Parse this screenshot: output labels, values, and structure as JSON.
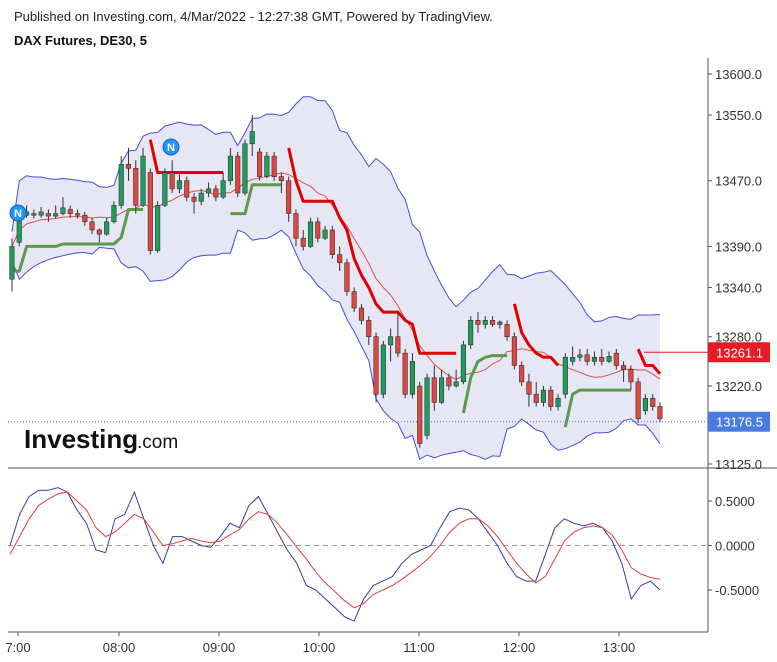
{
  "header": {
    "published": "Published on Investing.com, 4/Mar/2022 - 12:27:38 GMT, Powered by TradingView.",
    "symbol": "DAX Futures, DE30, 5"
  },
  "logo": {
    "brand": "Investing",
    "suffix": ".com"
  },
  "markers": [
    {
      "label": "N"
    },
    {
      "label": "N"
    }
  ],
  "colors": {
    "candle_up": "#1e9e5e",
    "candle_down": "#e0473f",
    "band_fill": "#e6e6f4",
    "band_line": "#4a4ae0",
    "supertrend_red": "#e00000",
    "supertrend_green": "#5a9a4a",
    "midline": "#e05050",
    "price_tag_red": "#e51c23",
    "price_tag_blue": "#4a7ce0",
    "osc_main": "#3a3aa0",
    "osc_signal": "#e04040"
  },
  "chart_data": [
    {
      "type": "candlestick",
      "title": "DAX Futures, DE30, 5",
      "x_ticks": [
        "7:00",
        "08:00",
        "09:00",
        "10:00",
        "11:00",
        "12:00",
        "13:00"
      ],
      "y_ticks": [
        13600.0,
        13550.0,
        13470.0,
        13390.0,
        13340.0,
        13280.0,
        13220.0,
        13125.0
      ],
      "y_tick_labels": [
        "13600.0",
        "13550.0",
        "13470.0",
        "13390.0",
        "13340.0",
        "13280.0",
        "13220.0",
        "13125.0"
      ],
      "ylim": [
        13125,
        13600
      ],
      "grid": false,
      "candles": [
        [
          13350,
          13390,
          13335,
          13400
        ],
        [
          13395,
          13430,
          13390,
          13440
        ],
        [
          13428,
          13432,
          13425,
          13440
        ],
        [
          13430,
          13428,
          13424,
          13435
        ],
        [
          13428,
          13432,
          13425,
          13438
        ],
        [
          13430,
          13427,
          13420,
          13435
        ],
        [
          13427,
          13430,
          13424,
          13440
        ],
        [
          13430,
          13437,
          13428,
          13450
        ],
        [
          13435,
          13430,
          13425,
          13440
        ],
        [
          13430,
          13428,
          13424,
          13435
        ],
        [
          13428,
          13420,
          13415,
          13432
        ],
        [
          13420,
          13410,
          13405,
          13425
        ],
        [
          13410,
          13405,
          13395,
          13412
        ],
        [
          13405,
          13420,
          13403,
          13425
        ],
        [
          13420,
          13440,
          13418,
          13445
        ],
        [
          13440,
          13490,
          13436,
          13500
        ],
        [
          13490,
          13485,
          13470,
          13510
        ],
        [
          13485,
          13440,
          13430,
          13495
        ],
        [
          13440,
          13500,
          13438,
          13510
        ],
        [
          13480,
          13385,
          13380,
          13485
        ],
        [
          13385,
          13440,
          13382,
          13445
        ],
        [
          13440,
          13480,
          13438,
          13485
        ],
        [
          13480,
          13460,
          13455,
          13495
        ],
        [
          13460,
          13470,
          13455,
          13478
        ],
        [
          13470,
          13450,
          13445,
          13475
        ],
        [
          13450,
          13445,
          13430,
          13455
        ],
        [
          13445,
          13455,
          13440,
          13460
        ],
        [
          13455,
          13460,
          13450,
          13468
        ],
        [
          13460,
          13450,
          13445,
          13465
        ],
        [
          13450,
          13470,
          13448,
          13480
        ],
        [
          13470,
          13500,
          13465,
          13510
        ],
        [
          13500,
          13455,
          13450,
          13505
        ],
        [
          13455,
          13515,
          13452,
          13520
        ],
        [
          13515,
          13530,
          13500,
          13550
        ],
        [
          13505,
          13475,
          13470,
          13510
        ],
        [
          13475,
          13500,
          13473,
          13505
        ],
        [
          13500,
          13475,
          13470,
          13505
        ],
        [
          13475,
          13470,
          13455,
          13480
        ],
        [
          13470,
          13430,
          13420,
          13475
        ],
        [
          13430,
          13400,
          13390,
          13435
        ],
        [
          13400,
          13390,
          13385,
          13410
        ],
        [
          13390,
          13420,
          13388,
          13425
        ],
        [
          13420,
          13400,
          13395,
          13425
        ],
        [
          13400,
          13410,
          13398,
          13415
        ],
        [
          13410,
          13380,
          13375,
          13415
        ],
        [
          13380,
          13370,
          13360,
          13390
        ],
        [
          13370,
          13335,
          13330,
          13375
        ],
        [
          13335,
          13315,
          13310,
          13340
        ],
        [
          13315,
          13300,
          13295,
          13320
        ],
        [
          13300,
          13280,
          13270,
          13305
        ],
        [
          13280,
          13210,
          13200,
          13285
        ],
        [
          13210,
          13270,
          13205,
          13275
        ],
        [
          13270,
          13280,
          13250,
          13290
        ],
        [
          13280,
          13260,
          13255,
          13310
        ],
        [
          13260,
          13210,
          13205,
          13265
        ],
        [
          13210,
          13250,
          13205,
          13260
        ],
        [
          13220,
          13150,
          13145,
          13225
        ],
        [
          13160,
          13230,
          13155,
          13235
        ],
        [
          13230,
          13200,
          13190,
          13245
        ],
        [
          13200,
          13230,
          13198,
          13240
        ],
        [
          13230,
          13220,
          13215,
          13235
        ],
        [
          13220,
          13225,
          13218,
          13240
        ],
        [
          13225,
          13270,
          13222,
          13275
        ],
        [
          13270,
          13300,
          13265,
          13305
        ],
        [
          13300,
          13295,
          13285,
          13310
        ],
        [
          13295,
          13300,
          13290,
          13305
        ],
        [
          13300,
          13295,
          13292,
          13305
        ],
        [
          13295,
          13298,
          13290,
          13300
        ],
        [
          13295,
          13280,
          13275,
          13300
        ],
        [
          13280,
          13245,
          13240,
          13285
        ],
        [
          13245,
          13225,
          13220,
          13250
        ],
        [
          13225,
          13210,
          13195,
          13235
        ],
        [
          13210,
          13200,
          13195,
          13225
        ],
        [
          13200,
          13215,
          13195,
          13220
        ],
        [
          13215,
          13195,
          13190,
          13220
        ],
        [
          13195,
          13205,
          13190,
          13210
        ],
        [
          13210,
          13255,
          13205,
          13260
        ],
        [
          13250,
          13255,
          13245,
          13268
        ],
        [
          13255,
          13258,
          13250,
          13265
        ],
        [
          13258,
          13250,
          13245,
          13265
        ],
        [
          13250,
          13255,
          13245,
          13262
        ],
        [
          13255,
          13250,
          13245,
          13265
        ],
        [
          13250,
          13256,
          13248,
          13262
        ],
        [
          13260,
          13245,
          13240,
          13265
        ],
        [
          13245,
          13240,
          13225,
          13250
        ],
        [
          13240,
          13225,
          13215,
          13245
        ],
        [
          13225,
          13180,
          13175,
          13230
        ],
        [
          13190,
          13205,
          13185,
          13210
        ],
        [
          13205,
          13195,
          13190,
          13210
        ],
        [
          13195,
          13180,
          13176,
          13200
        ]
      ],
      "annotations": [
        "13261.1",
        "13176.5"
      ]
    },
    {
      "type": "line",
      "y_ticks": [
        0.5,
        0.0,
        -0.5
      ],
      "y_tick_labels": [
        "0.5000",
        "0.0000",
        "-0.5000"
      ],
      "ylim": [
        -0.9,
        0.95
      ],
      "zero_line": true,
      "series": [
        {
          "values": [
            0.0,
            0.35,
            0.55,
            0.62,
            0.62,
            0.65,
            0.6,
            0.4,
            0.25,
            -0.05,
            -0.08,
            0.3,
            0.35,
            0.6,
            0.3,
            0.0,
            -0.2,
            0.1,
            0.1,
            0.05,
            0.0,
            -0.02,
            0.1,
            0.25,
            0.2,
            0.45,
            0.55,
            0.35,
            0.15,
            -0.05,
            -0.2,
            -0.45,
            -0.5,
            -0.6,
            -0.7,
            -0.8,
            -0.85,
            -0.6,
            -0.45,
            -0.4,
            -0.35,
            -0.2,
            -0.1,
            -0.05,
            0.0,
            0.2,
            0.38,
            0.42,
            0.4,
            0.3,
            0.15,
            0.0,
            -0.2,
            -0.35,
            -0.4,
            -0.4,
            -0.1,
            0.2,
            0.3,
            0.25,
            0.22,
            0.25,
            0.2,
            0.05,
            -0.2,
            -0.6,
            -0.45,
            -0.4,
            -0.5
          ]
        },
        {
          "values": [
            -0.1,
            0.1,
            0.3,
            0.45,
            0.52,
            0.58,
            0.6,
            0.5,
            0.4,
            0.2,
            0.1,
            0.15,
            0.25,
            0.35,
            0.3,
            0.15,
            0.0,
            0.02,
            0.05,
            0.08,
            0.05,
            0.03,
            0.05,
            0.12,
            0.18,
            0.3,
            0.38,
            0.35,
            0.25,
            0.12,
            -0.02,
            -0.15,
            -0.3,
            -0.42,
            -0.52,
            -0.62,
            -0.7,
            -0.65,
            -0.55,
            -0.5,
            -0.45,
            -0.38,
            -0.3,
            -0.22,
            -0.12,
            0.0,
            0.15,
            0.25,
            0.3,
            0.3,
            0.22,
            0.1,
            -0.05,
            -0.2,
            -0.32,
            -0.42,
            -0.35,
            -0.15,
            0.05,
            0.15,
            0.2,
            0.22,
            0.2,
            0.12,
            -0.05,
            -0.25,
            -0.32,
            -0.36,
            -0.38
          ]
        }
      ]
    }
  ]
}
